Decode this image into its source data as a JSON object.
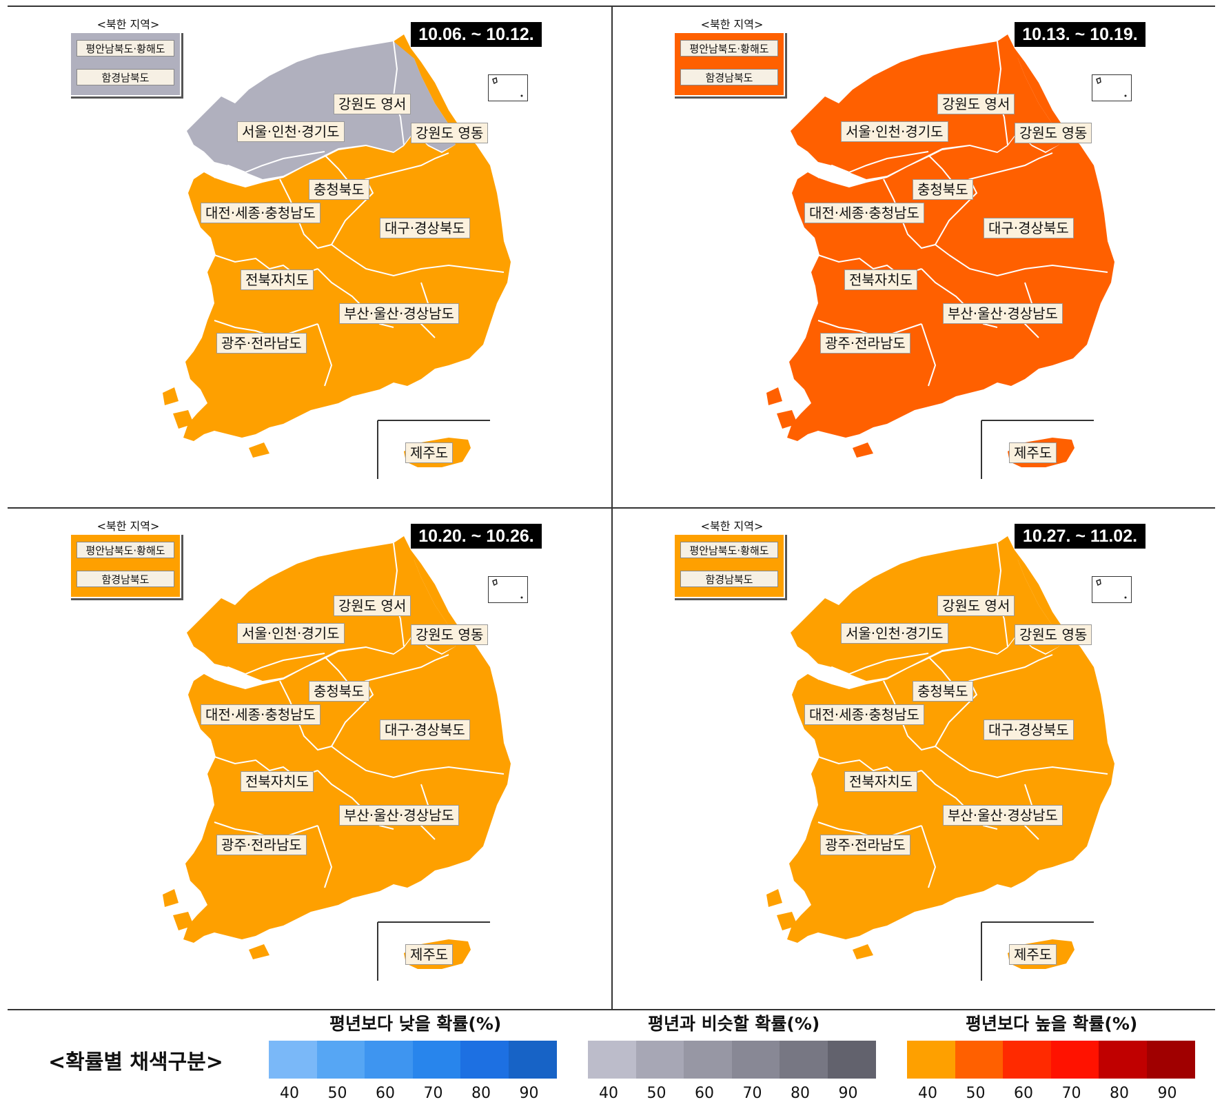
{
  "panels": [
    {
      "date": "10.06. ~ 10.12.",
      "south_color": "#fea000",
      "north_color": "#b0b0be"
    },
    {
      "date": "10.13. ~ 10.19.",
      "south_color": "#ff6000",
      "north_color": "#ff6000"
    },
    {
      "date": "10.20. ~ 10.26.",
      "south_color": "#fea000",
      "north_color": "#fea000"
    },
    {
      "date": "10.27. ~ 11.02.",
      "south_color": "#fea000",
      "north_color": "#fea000"
    }
  ],
  "north_box": {
    "title": "<북한 지역>",
    "regions": [
      "평안남북도·황해도",
      "함경남북도"
    ]
  },
  "regions": {
    "gangwon_west": "강원도 영서",
    "seoul": "서울·인천·경기도",
    "gangwon_east": "강원도 영동",
    "chungbuk": "충청북도",
    "chungnam": "대전·세종·충청남도",
    "gyeongbuk": "대구·경상북도",
    "jeonbuk": "전북자치도",
    "gyeongnam": "부산·울산·경상남도",
    "jeonnam": "광주·전라남도",
    "jeju": "제주도"
  },
  "legend": {
    "title": "<확률별 채색구분>",
    "groups": [
      {
        "title": "평년보다 낮을 확률(%)",
        "colors": [
          "#7ab8f8",
          "#56a6f4",
          "#3e95f0",
          "#2885ec",
          "#1d70e2",
          "#1763c6"
        ],
        "ticks": [
          "40",
          "50",
          "60",
          "70",
          "80",
          "90"
        ]
      },
      {
        "title": "평년과 비슷할 확률(%)",
        "colors": [
          "#bcbcca",
          "#a7a7b5",
          "#9797a4",
          "#888895",
          "#777783",
          "#62626d"
        ],
        "ticks": [
          "40",
          "50",
          "60",
          "70",
          "80",
          "90"
        ]
      },
      {
        "title": "평년보다 높을 확률(%)",
        "colors": [
          "#fea000",
          "#ff6000",
          "#ff2a00",
          "#ff1200",
          "#c00000",
          "#a00000"
        ],
        "ticks": [
          "40",
          "50",
          "60",
          "70",
          "80",
          "90"
        ]
      }
    ]
  }
}
